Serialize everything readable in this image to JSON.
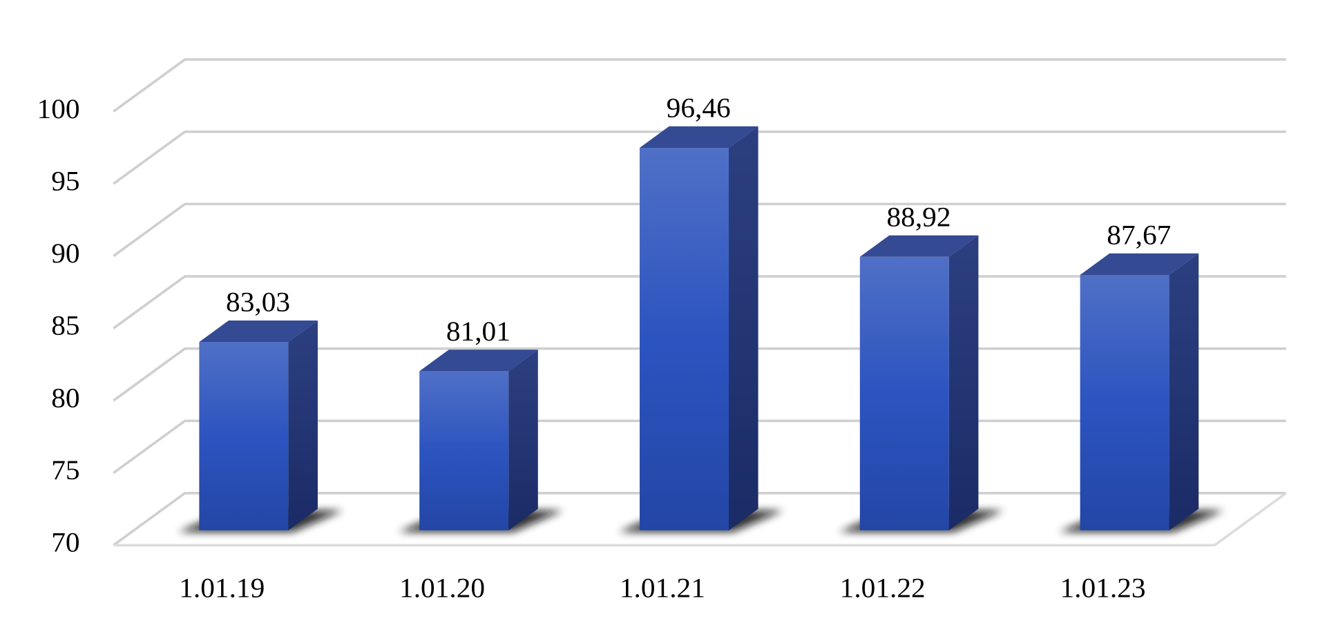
{
  "chart_data": {
    "type": "bar3d",
    "categories": [
      "1.01.19",
      "1.01.20",
      "1.01.21",
      "1.01.22",
      "1.01.23"
    ],
    "values": [
      83.03,
      81.01,
      96.46,
      88.92,
      87.67
    ],
    "value_labels": [
      "83,03",
      "81,01",
      "96,46",
      "88,92",
      "87,67"
    ],
    "color": "#3457c0",
    "ylim": [
      70,
      100
    ],
    "yticks": [
      70,
      75,
      80,
      85,
      90,
      95,
      100
    ],
    "grid": true
  }
}
